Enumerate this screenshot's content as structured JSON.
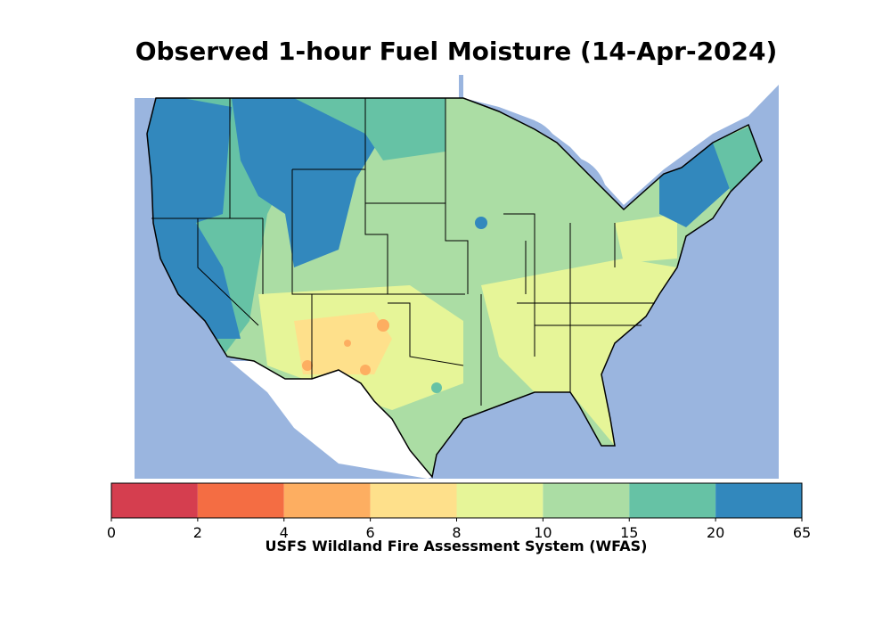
{
  "title": "Observed 1-hour Fuel Moisture (14-Apr-2024)",
  "colorbar": {
    "boundaries": [
      0,
      2,
      4,
      6,
      8,
      10,
      15,
      20,
      65
    ],
    "colors": [
      "#d53e4f",
      "#f46d43",
      "#fdae61",
      "#fee08b",
      "#e6f598",
      "#abdda4",
      "#66c2a5",
      "#3288bd"
    ],
    "label": "USFS Wildland Fire Assessment System (WFAS)"
  }
}
